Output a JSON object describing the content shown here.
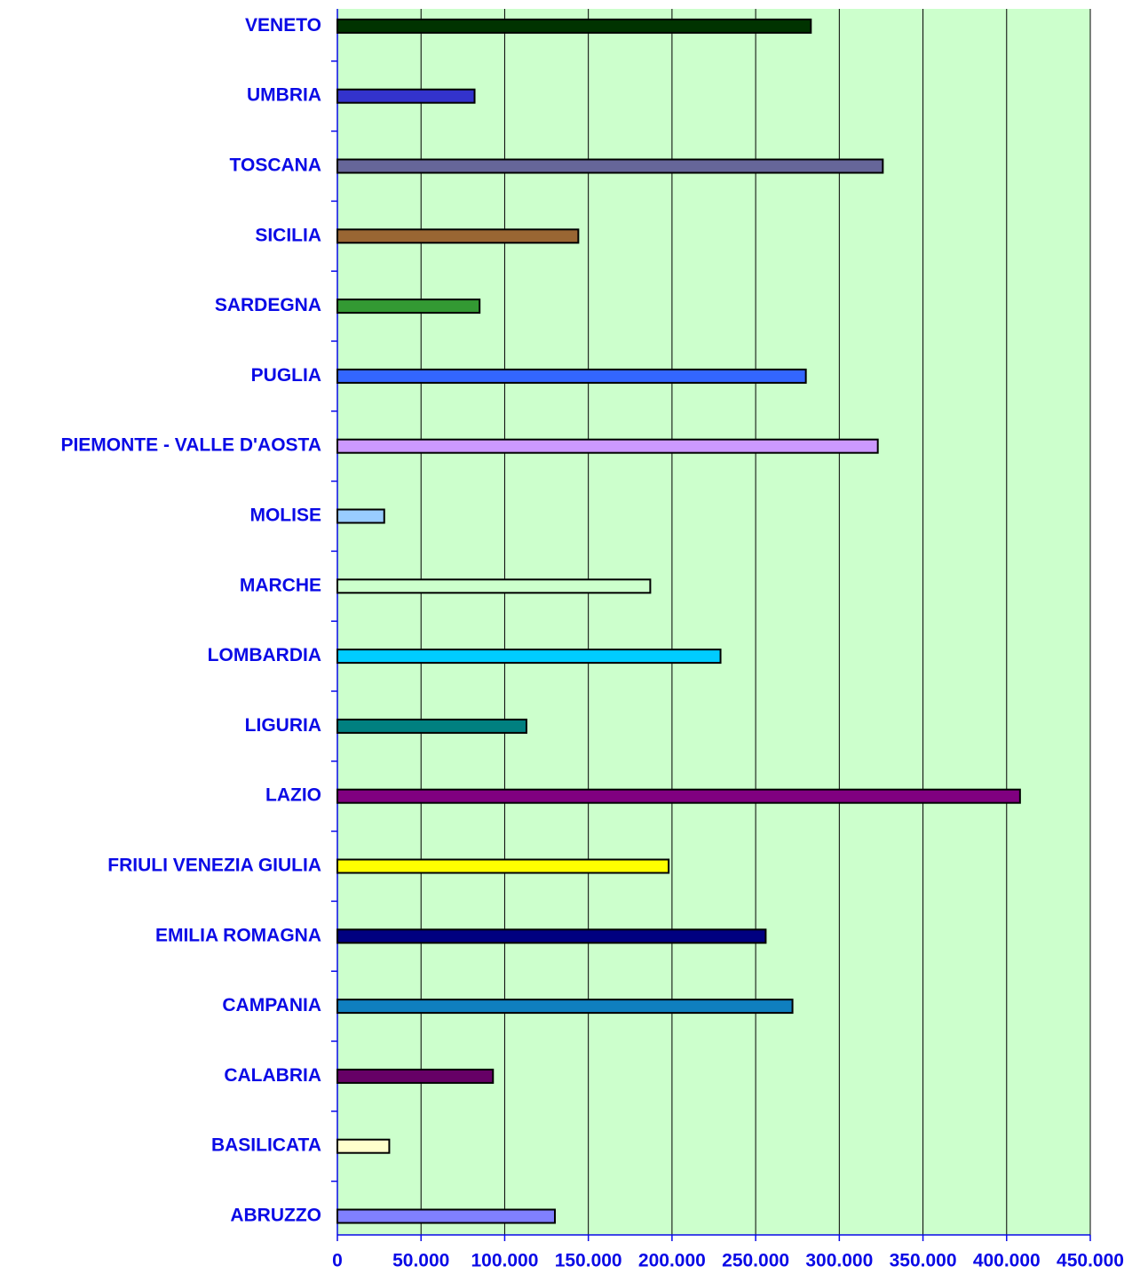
{
  "chart_data": {
    "type": "bar",
    "orientation": "horizontal",
    "categories": [
      "ABRUZZO",
      "BASILICATA",
      "CALABRIA",
      "CAMPANIA",
      "EMILIA ROMAGNA",
      "FRIULI VENEZIA GIULIA",
      "LAZIO",
      "LIGURIA",
      "LOMBARDIA",
      "MARCHE",
      "MOLISE",
      "PIEMONTE - VALLE D'AOSTA",
      "PUGLIA",
      "SARDEGNA",
      "SICILIA",
      "TOSCANA",
      "UMBRIA",
      "VENETO"
    ],
    "values": [
      130000,
      31000,
      93000,
      272000,
      256000,
      198000,
      408000,
      113000,
      229000,
      187000,
      28000,
      323000,
      280000,
      85000,
      144000,
      326000,
      82000,
      283000
    ],
    "colors": [
      "#8080ff",
      "#ffffcc",
      "#660066",
      "#0f7fbf",
      "#000080",
      "#ffff00",
      "#800080",
      "#008080",
      "#00ccff",
      "#ccffcc",
      "#99ccff",
      "#cc99ff",
      "#3366ff",
      "#339933",
      "#996633",
      "#666699",
      "#3333cc",
      "#003300"
    ],
    "xlim": [
      0,
      450000
    ],
    "xticks": [
      0,
      {
        "value": 50000,
        "label": "50.000"
      },
      {
        "value": 100000,
        "label": "100.000"
      },
      {
        "value": 150000,
        "label": "150.000"
      },
      {
        "value": 200000,
        "label": "200.000"
      },
      {
        "value": 250000,
        "label": "250.000"
      },
      {
        "value": 300000,
        "label": "300.000"
      },
      {
        "value": 350000,
        "label": "350.000"
      },
      {
        "value": 400000,
        "label": "400.000"
      },
      {
        "value": 450000,
        "label": "450.000"
      }
    ],
    "grid": true,
    "background": "#ccffcc"
  }
}
